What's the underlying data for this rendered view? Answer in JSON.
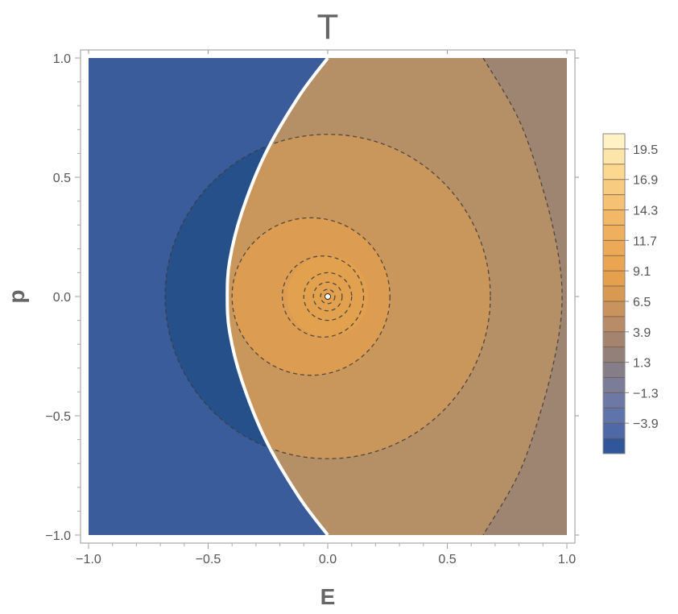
{
  "chart_data": {
    "type": "contour",
    "title": "T",
    "xlabel": "E",
    "ylabel": "p",
    "xlim": [
      -1.0,
      1.0
    ],
    "ylim": [
      -1.0,
      1.0
    ],
    "x_ticks": [
      -1.0,
      -0.5,
      0.0,
      0.5,
      1.0
    ],
    "x_tick_labels": [
      "−1.0",
      "−0.5",
      "0.0",
      "0.5",
      "1.0"
    ],
    "y_ticks": [
      -1.0,
      -0.5,
      0.0,
      0.5,
      1.0
    ],
    "y_tick_labels": [
      "−1.0",
      "−0.5",
      "0.0",
      "0.5",
      "1.0"
    ],
    "grid": false,
    "contour_style": "dashed",
    "boundary": {
      "description": "white discontinuity curve",
      "points": [
        [
          0.0,
          1.0
        ],
        [
          -0.12,
          0.84
        ],
        [
          -0.26,
          0.6
        ],
        [
          -0.36,
          0.35
        ],
        [
          -0.41,
          0.15
        ],
        [
          -0.42,
          0.0
        ],
        [
          -0.41,
          -0.15
        ],
        [
          -0.36,
          -0.35
        ],
        [
          -0.26,
          -0.6
        ],
        [
          -0.12,
          -0.84
        ],
        [
          0.0,
          -1.0
        ]
      ]
    },
    "regions": [
      {
        "side": "left",
        "fill": "#3a5c9a"
      },
      {
        "side": "left",
        "fill": "#25508a",
        "circle": {
          "cx": 0.0,
          "cy": 0.0,
          "r": 0.68
        }
      },
      {
        "side": "right",
        "fill": "#9d8572"
      },
      {
        "side": "right",
        "fill": "#b58f65",
        "circle": {
          "cx": 0.65,
          "cy": 0.0,
          "r": 0.22,
          "rule": "outside-left-of",
          "x_break": 0.93
        }
      },
      {
        "side": "right",
        "fill": "#c9965b",
        "circle": {
          "cx": 0.0,
          "cy": 0.0,
          "r": 0.68
        }
      },
      {
        "side": "right",
        "fill": "#dc9d52",
        "circle": {
          "cx": -0.07,
          "cy": 0.0,
          "r": 0.33
        }
      },
      {
        "side": "right",
        "fill": "#e1a14e",
        "circle": {
          "cx": 0.0,
          "cy": 0.0,
          "r": 0.17
        }
      }
    ],
    "contours": [
      {
        "cx": 0.0,
        "cy": 0.0,
        "r": 0.68
      },
      {
        "cx": -0.07,
        "cy": 0.0,
        "r": 0.33
      },
      {
        "cx": -0.02,
        "cy": 0.0,
        "r": 0.17
      },
      {
        "cx": 0.0,
        "cy": 0.0,
        "r": 0.1
      },
      {
        "cx": 0.0,
        "cy": 0.0,
        "r": 0.06
      },
      {
        "cx": 0.0,
        "cy": 0.0,
        "r": 0.03
      }
    ],
    "outer_contour_points": [
      [
        0.65,
        1.0
      ],
      [
        0.8,
        0.74
      ],
      [
        0.9,
        0.45
      ],
      [
        0.96,
        0.2
      ],
      [
        0.98,
        0.0
      ],
      [
        0.96,
        -0.2
      ],
      [
        0.9,
        -0.45
      ],
      [
        0.8,
        -0.74
      ],
      [
        0.65,
        -1.0
      ]
    ],
    "legend": {
      "placement": "right",
      "labels": [
        "19.5",
        "16.9",
        "14.3",
        "11.7",
        "9.1",
        "6.5",
        "3.9",
        "1.3",
        "−1.3",
        "−3.9"
      ],
      "levels": [
        20.8,
        19.5,
        18.2,
        16.9,
        15.6,
        14.3,
        13.0,
        11.7,
        10.4,
        9.1,
        7.8,
        6.5,
        5.2,
        3.9,
        2.6,
        1.3,
        0.0,
        -1.3,
        -2.6,
        -3.9,
        -5.2
      ],
      "colors": [
        "#fff3c6",
        "#fde5a9",
        "#fbd790",
        "#f8cc80",
        "#f5c274",
        "#f2b767",
        "#eeaf5e",
        "#ecaa58",
        "#e9a552",
        "#e5a04d",
        "#d89a53",
        "#c9935e",
        "#b88c66",
        "#a5846f",
        "#938079",
        "#857e88",
        "#7a7c98",
        "#6d79a4",
        "#5f74aa",
        "#4f68a6",
        "#30579a"
      ]
    },
    "colors": {
      "frame": "#999999",
      "contour_line": "#3d3a38",
      "boundary": "#ffffff",
      "singular_point": "#ffffff"
    }
  }
}
